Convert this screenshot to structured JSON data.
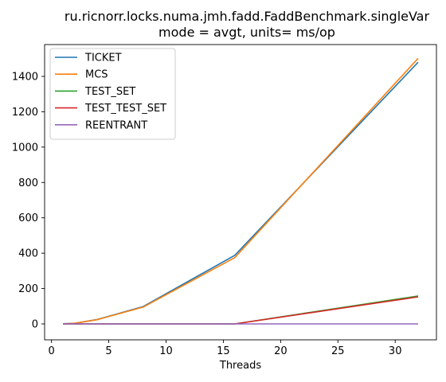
{
  "chart_data": {
    "type": "line",
    "title_lines": [
      "ru.ricnorr.locks.numa.jmh.fadd.FaddBenchmark.singleVar",
      "mode = avgt, units= ms/op"
    ],
    "xlabel": "Threads",
    "ylabel": "",
    "xlim": [
      -0.6,
      33.6
    ],
    "ylim": [
      -90,
      1580
    ],
    "xticks": [
      0,
      5,
      10,
      15,
      20,
      25,
      30
    ],
    "yticks": [
      0,
      200,
      400,
      600,
      800,
      1000,
      1200,
      1400
    ],
    "grid": false,
    "legend_position": "top-left",
    "x": [
      1,
      2,
      4,
      8,
      16,
      32
    ],
    "series": [
      {
        "name": "TICKET",
        "color": "#1f77b4",
        "values": [
          1,
          3,
          25,
          98,
          388,
          1480
        ]
      },
      {
        "name": "MCS",
        "color": "#ff7f0e",
        "values": [
          1,
          3,
          24,
          95,
          375,
          1502
        ]
      },
      {
        "name": "TEST_SET",
        "color": "#2ca02c",
        "values": [
          0,
          0,
          0,
          0,
          0,
          158
        ]
      },
      {
        "name": "TEST_TEST_SET",
        "color": "#d62728",
        "values": [
          0,
          0,
          0,
          0,
          0,
          153
        ]
      },
      {
        "name": "REENTRANT",
        "color": "#9467bd",
        "values": [
          0,
          0,
          0,
          0,
          0,
          0
        ]
      }
    ]
  }
}
